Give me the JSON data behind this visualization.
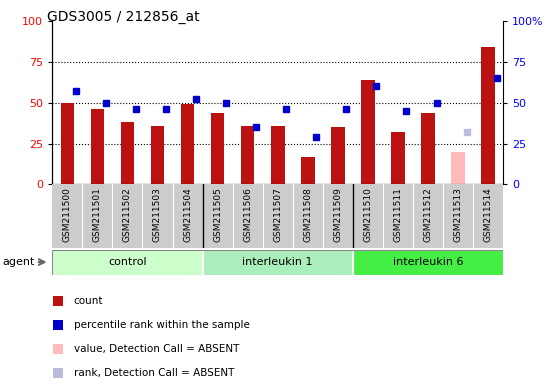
{
  "title": "GDS3005 / 212856_at",
  "samples": [
    "GSM211500",
    "GSM211501",
    "GSM211502",
    "GSM211503",
    "GSM211504",
    "GSM211505",
    "GSM211506",
    "GSM211507",
    "GSM211508",
    "GSM211509",
    "GSM211510",
    "GSM211511",
    "GSM211512",
    "GSM211513",
    "GSM211514"
  ],
  "counts": [
    50,
    46,
    38,
    36,
    49,
    44,
    36,
    36,
    17,
    35,
    64,
    32,
    44,
    20,
    84
  ],
  "ranks": [
    57,
    50,
    46,
    46,
    52,
    50,
    35,
    46,
    29,
    46,
    60,
    45,
    50,
    32,
    65
  ],
  "absent_flags": [
    false,
    false,
    false,
    false,
    false,
    false,
    false,
    false,
    false,
    false,
    false,
    false,
    false,
    true,
    false
  ],
  "groups": [
    {
      "label": "control",
      "start": 0,
      "end": 4,
      "color": "#ccffcc"
    },
    {
      "label": "interleukin 1",
      "start": 5,
      "end": 9,
      "color": "#aaeebb"
    },
    {
      "label": "interleukin 6",
      "start": 10,
      "end": 14,
      "color": "#44ee44"
    }
  ],
  "bar_color_normal": "#bb1111",
  "bar_color_absent": "#ffbbbb",
  "rank_color_normal": "#0000cc",
  "rank_color_absent": "#bbbbdd",
  "plot_bg": "#ffffff",
  "xarea_bg": "#cccccc",
  "ylim_left": [
    0,
    100
  ],
  "ylim_right": [
    0,
    100
  ],
  "yticks_left": [
    0,
    25,
    50,
    75,
    100
  ],
  "yticks_right": [
    0,
    25,
    50,
    75,
    100
  ],
  "legend_items": [
    {
      "label": "count",
      "color": "#bb1111"
    },
    {
      "label": "percentile rank within the sample",
      "color": "#0000cc"
    },
    {
      "label": "value, Detection Call = ABSENT",
      "color": "#ffbbbb"
    },
    {
      "label": "rank, Detection Call = ABSENT",
      "color": "#bbbbdd"
    }
  ],
  "agent_label": "agent"
}
